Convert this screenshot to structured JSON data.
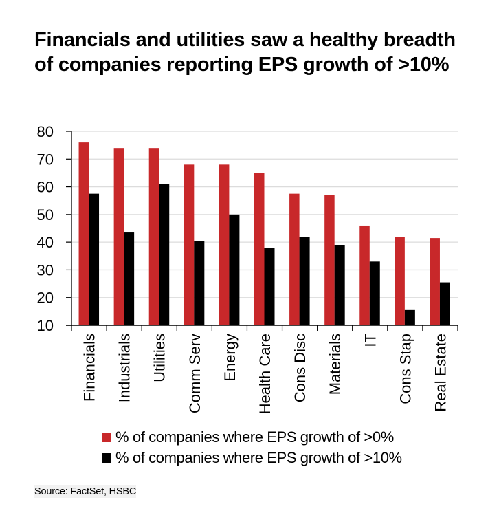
{
  "title": "Financials and utilities saw a healthy breadth of companies reporting EPS growth of >10%",
  "source": "Source: FactSet, HSBC",
  "colors": {
    "series1": "#c8282a",
    "series2": "#000000",
    "grid": "#dcdcdc",
    "axis": "#000000"
  },
  "chart_data": {
    "type": "bar",
    "title": "Financials and utilities saw a healthy breadth of companies reporting EPS growth of >10%",
    "xlabel": "",
    "ylabel": "",
    "ylim": [
      10,
      80
    ],
    "yticks": [
      10,
      20,
      30,
      40,
      50,
      60,
      70,
      80
    ],
    "grid": true,
    "legend_position": "bottom",
    "categories": [
      "Financials",
      "Industrials",
      "Utilities",
      "Comm Serv",
      "Energy",
      "Health Care",
      "Cons Disc",
      "Materials",
      "IT",
      "Cons Stap",
      "Real Estate"
    ],
    "series": [
      {
        "name": "% of companies where EPS growth of >0%",
        "color": "#c8282a",
        "values": [
          76,
          74,
          74,
          68,
          68,
          65,
          57.5,
          57,
          46,
          42,
          41.5
        ]
      },
      {
        "name": "% of companies where EPS growth of >10%",
        "color": "#000000",
        "values": [
          57.5,
          43.5,
          61,
          40.5,
          50,
          38,
          42,
          39,
          33,
          15.5,
          25.5
        ]
      }
    ]
  }
}
